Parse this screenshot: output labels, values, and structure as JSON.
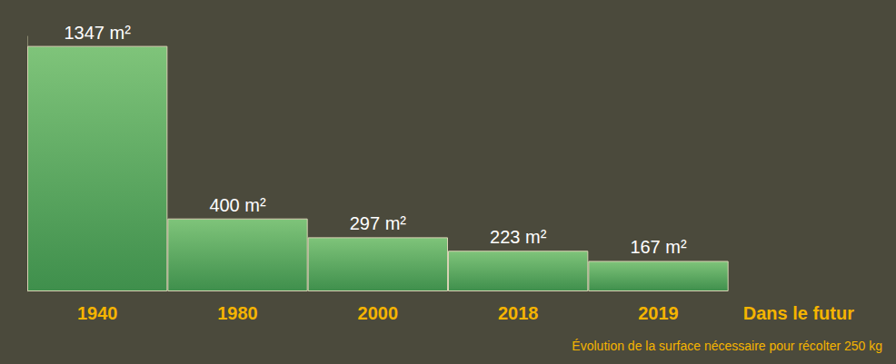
{
  "chart_data": {
    "type": "bar",
    "title": "Évolution de la surface nécessaire pour récolter 250 kg",
    "categories": [
      "1940",
      "1980",
      "2000",
      "2018",
      "2019",
      "Dans le futur"
    ],
    "values": [
      1347,
      400,
      297,
      223,
      167,
      null
    ],
    "value_labels": [
      "1347 m²",
      "400 m²",
      "297 m²",
      "223 m²",
      "167 m²",
      null
    ],
    "color": "#3f8f4c",
    "ylim": [
      0,
      1400
    ],
    "tick_labels": "x",
    "grid": false,
    "data_labels": true
  }
}
